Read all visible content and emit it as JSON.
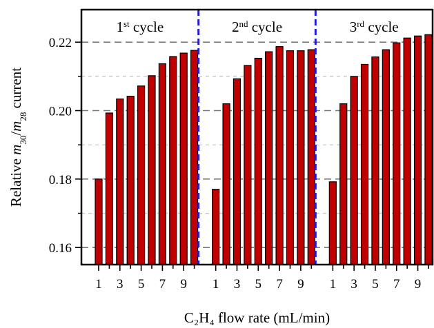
{
  "chart_data": {
    "type": "bar",
    "xlabel": "C₂H₄ flow rate (mL/min)",
    "ylabel": {
      "prefix": "Relative ",
      "var1": "m",
      "sub1": "30",
      "slash": "/",
      "var2": "m",
      "sub2": "28",
      "suffix": " current"
    },
    "ylim": [
      0.155,
      0.2295
    ],
    "yticks": [
      "0.16",
      "0.18",
      "0.20",
      "0.22"
    ],
    "ytick_values": [
      0.16,
      0.18,
      0.2,
      0.22
    ],
    "minor_grid_values": [
      0.17,
      0.19,
      0.21
    ],
    "xtick_labels": [
      "1",
      "3",
      "5",
      "7",
      "9"
    ],
    "bar_color": "#c00000",
    "divider_color": "#1f1fd0",
    "grid": "dashed horizontal",
    "cycles": [
      {
        "num": "1",
        "sup": "st",
        "text": " cycle",
        "values": [
          0.18,
          0.1993,
          0.2034,
          0.2042,
          0.2072,
          0.2102,
          0.2137,
          0.2158,
          0.2168,
          0.2176
        ]
      },
      {
        "num": "2",
        "sup": "nd",
        "text": " cycle",
        "values": [
          0.177,
          0.202,
          0.2093,
          0.2132,
          0.2153,
          0.2172,
          0.2187,
          0.2175,
          0.2175,
          0.2178
        ]
      },
      {
        "num": "3",
        "sup": "rd",
        "text": " cycle",
        "values": [
          0.1792,
          0.202,
          0.21,
          0.2135,
          0.2157,
          0.2178,
          0.2198,
          0.2212,
          0.2218,
          0.2222
        ]
      }
    ]
  }
}
